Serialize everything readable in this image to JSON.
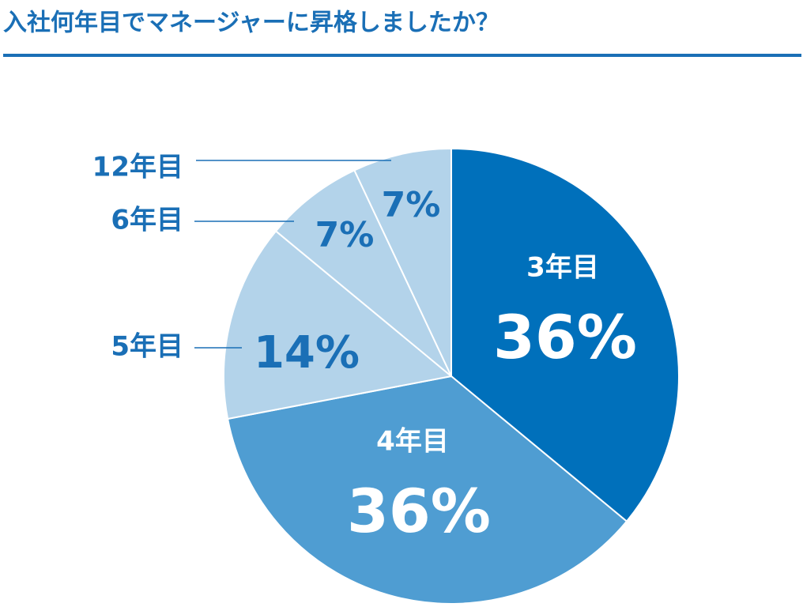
{
  "chart_data": {
    "type": "pie",
    "title": "入社何年目でマネージャーに昇格しましたか？",
    "categories": [
      "3年目",
      "4年目",
      "5年目",
      "6年目",
      "12年目"
    ],
    "values": [
      36,
      36,
      14,
      7,
      7
    ],
    "value_labels": [
      "36%",
      "36%",
      "14%",
      "7%",
      "7%"
    ],
    "colors": [
      "#0070bb",
      "#4f9dd2",
      "#b3d3ea",
      "#b3d3ea",
      "#b3d3ea"
    ]
  }
}
